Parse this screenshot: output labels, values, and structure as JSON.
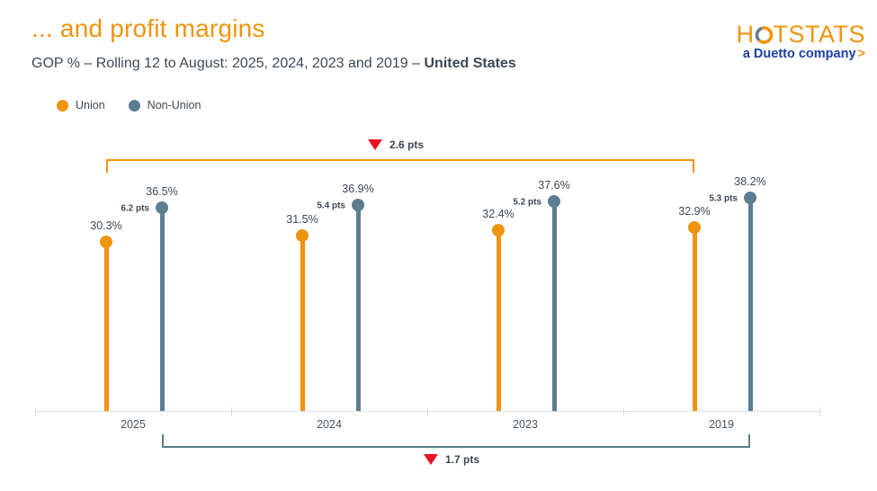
{
  "slide": {
    "title": "... and profit margins",
    "subtitle": "GOP % – Rolling 12 to August: 2025, 2024, 2023 and 2019 – ",
    "subtitle_emphasis": "United States"
  },
  "logo": {
    "brand_h": "H",
    "brand_rest": "TSTATS",
    "brand_full": "HOTSTATS",
    "tagline": "a Duetto company",
    "chevron": ">"
  },
  "legend": [
    {
      "label": "Union",
      "color": "#F0940D"
    },
    {
      "label": "Non-Union",
      "color": "#5B7E91"
    }
  ],
  "colors": {
    "accent_orange": "#F0940D",
    "slate_blue": "#5B7E91",
    "marker_red": "#E81123",
    "dark_text": "#3F4854",
    "axis_gray": "#DCDCDC",
    "logo_navy": "#1B3FA5"
  },
  "chart_data": {
    "type": "lollipop",
    "title": "GOP % – Rolling 12 to August: 2025, 2024, 2023 and 2019 – United States",
    "categories": [
      "2025",
      "2024",
      "2023",
      "2019"
    ],
    "series": [
      {
        "name": "Union",
        "color": "#F0940D",
        "values": [
          30.3,
          31.5,
          32.4,
          32.9
        ],
        "value_labels": [
          "30.3%",
          "31.5%",
          "32.4%",
          "32.9%"
        ]
      },
      {
        "name": "Non-Union",
        "color": "#5B7E91",
        "values": [
          36.5,
          36.9,
          37.6,
          38.2
        ],
        "value_labels": [
          "36.5%",
          "36.9%",
          "37.6%",
          "38.2%"
        ]
      }
    ],
    "gap_labels": [
      "6.2 pts",
      "5.4 pts",
      "5.2 pts",
      "5.3 pts"
    ],
    "brackets": [
      {
        "series": "Union",
        "from": "2025",
        "to": "2019",
        "position": "above",
        "label": "2.6 pts",
        "color": "#F0940D"
      },
      {
        "series": "Non-Union",
        "from": "2025",
        "to": "2019",
        "position": "below",
        "label": "1.7 pts",
        "color": "#5B7E91"
      }
    ],
    "ylim": [
      0,
      40
    ],
    "grid": false,
    "legend_position": "top-left",
    "xlabel": "",
    "ylabel": "GOP %"
  }
}
